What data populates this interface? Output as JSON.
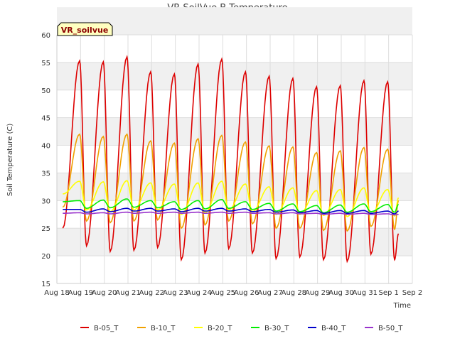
{
  "chart_data": {
    "type": "line",
    "title": "VR SoilVue B Temperature",
    "xlabel": "Time",
    "ylabel": "Soil Temperature (C)",
    "ylim": [
      15,
      60
    ],
    "yticks": [
      15,
      20,
      25,
      30,
      35,
      40,
      45,
      50,
      55,
      60
    ],
    "xlim": [
      "Aug 18",
      "Sep 2"
    ],
    "xtick_labels": [
      "Aug 18",
      "Aug 19",
      "Aug 20",
      "Aug 21",
      "Aug 22",
      "Aug 23",
      "Aug 24",
      "Aug 25",
      "Aug 26",
      "Aug 27",
      "Aug 28",
      "Aug 29",
      "Aug 30",
      "Aug 31",
      "Sep 1",
      "Sep 2"
    ],
    "site_tag": "VR_soilvue",
    "grid": true,
    "legend_position": "bottom",
    "x_dates": [
      "Aug 18 06:00",
      "Aug 19 00:00",
      "Aug 20 00:00",
      "Aug 21 00:00",
      "Aug 22 00:00",
      "Aug 23 00:00",
      "Aug 24 00:00",
      "Aug 25 00:00",
      "Aug 26 00:00",
      "Aug 27 00:00",
      "Aug 28 00:00",
      "Aug 29 00:00",
      "Aug 30 00:00",
      "Aug 31 00:00",
      "Sep 1 00:00",
      "Sep 1 10:00"
    ],
    "series": [
      {
        "name": "B-05_T",
        "color": "#dd0000",
        "daily_max": [
          55.3,
          55.1,
          56.0,
          53.3,
          52.9,
          54.7,
          55.6,
          53.3,
          52.5,
          52.1,
          50.6,
          50.8,
          51.7,
          51.5
        ],
        "daily_min": [
          21.8,
          20.8,
          21.0,
          21.5,
          19.3,
          20.5,
          21.3,
          20.5,
          19.5,
          19.8,
          19.3,
          19.0,
          20.3,
          19.3
        ],
        "start": 25.0,
        "end": 24.0
      },
      {
        "name": "B-10_T",
        "color": "#f0a000",
        "daily_max": [
          42.0,
          41.6,
          42.0,
          40.8,
          40.4,
          41.2,
          41.8,
          40.6,
          39.9,
          39.7,
          38.7,
          39.0,
          39.6,
          39.3
        ],
        "daily_min": [
          26.3,
          26.0,
          26.3,
          26.5,
          25.0,
          25.6,
          26.3,
          25.8,
          25.0,
          25.0,
          24.6,
          24.5,
          25.3,
          24.8
        ],
        "start": 28.8,
        "end": 30.0
      },
      {
        "name": "B-20_T",
        "color": "#ffff00",
        "daily_max": [
          33.5,
          33.4,
          33.6,
          33.2,
          33.0,
          33.2,
          33.5,
          33.0,
          32.5,
          32.3,
          31.8,
          32.0,
          32.3,
          32.0
        ],
        "daily_min": [
          28.3,
          28.0,
          28.3,
          28.3,
          27.5,
          27.8,
          28.3,
          28.0,
          27.5,
          27.5,
          27.3,
          27.1,
          27.5,
          27.2
        ],
        "start": 31.2,
        "end": 30.5
      },
      {
        "name": "B-30_T",
        "color": "#00ee00",
        "daily_max": [
          30.0,
          30.1,
          30.3,
          30.0,
          29.8,
          30.0,
          30.2,
          29.8,
          29.5,
          29.4,
          29.1,
          29.2,
          29.4,
          29.3
        ],
        "daily_min": [
          28.6,
          28.7,
          28.8,
          28.7,
          28.4,
          28.5,
          28.6,
          28.4,
          28.1,
          28.0,
          27.8,
          27.9,
          28.0,
          27.9
        ],
        "start": 29.8,
        "end": 29.3
      },
      {
        "name": "B-40_T",
        "color": "#0000cc",
        "daily_max": [
          28.4,
          28.5,
          28.6,
          28.6,
          28.5,
          28.6,
          28.6,
          28.5,
          28.4,
          28.3,
          28.2,
          28.2,
          28.2,
          28.1
        ],
        "daily_min": [
          27.9,
          28.0,
          28.1,
          28.1,
          28.0,
          28.1,
          28.1,
          28.0,
          27.9,
          27.8,
          27.7,
          27.7,
          27.7,
          27.6
        ],
        "start": 28.4,
        "end": 28.1
      },
      {
        "name": "B-50_T",
        "color": "#9933cc",
        "daily_max": [
          27.8,
          27.8,
          27.9,
          27.9,
          27.9,
          27.9,
          27.9,
          27.9,
          27.8,
          27.8,
          27.7,
          27.7,
          27.7,
          27.6
        ],
        "daily_min": [
          27.6,
          27.6,
          27.7,
          27.7,
          27.7,
          27.7,
          27.7,
          27.7,
          27.6,
          27.6,
          27.5,
          27.5,
          27.5,
          27.4
        ],
        "start": 27.7,
        "end": 27.5
      }
    ]
  }
}
